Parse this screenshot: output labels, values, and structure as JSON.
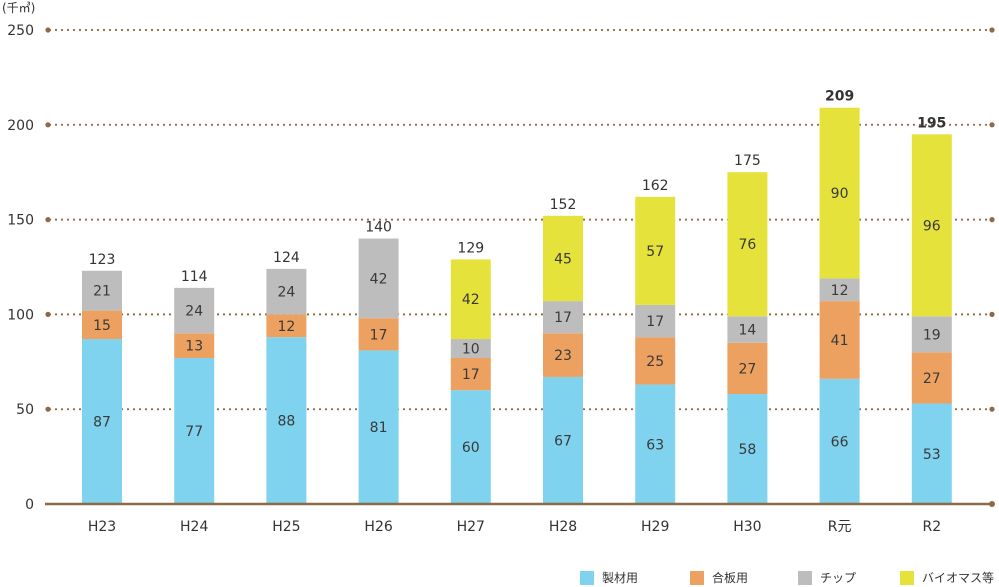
{
  "chart_data": {
    "type": "bar",
    "stacked": true,
    "unit_label": "(千㎥)",
    "categories": [
      "H23",
      "H24",
      "H25",
      "H26",
      "H27",
      "H28",
      "H29",
      "H30",
      "R元",
      "R2"
    ],
    "series": [
      {
        "name": "製材用",
        "color": "#7fd3ef",
        "values": [
          87,
          77,
          88,
          81,
          60,
          67,
          63,
          58,
          66,
          53
        ]
      },
      {
        "name": "合板用",
        "color": "#eda160",
        "values": [
          15,
          13,
          12,
          17,
          17,
          23,
          25,
          27,
          41,
          27
        ]
      },
      {
        "name": "チップ",
        "color": "#bdbdbd",
        "values": [
          21,
          24,
          24,
          42,
          10,
          17,
          17,
          14,
          12,
          19
        ]
      },
      {
        "name": "バイオマス等",
        "color": "#e6e23c",
        "values": [
          0,
          0,
          0,
          0,
          42,
          45,
          57,
          76,
          90,
          96
        ]
      }
    ],
    "totals": [
      123,
      114,
      124,
      140,
      129,
      152,
      162,
      175,
      209,
      195
    ],
    "totals_bold": [
      false,
      false,
      false,
      false,
      false,
      false,
      false,
      false,
      true,
      true
    ],
    "ylim": [
      0,
      250
    ],
    "yticks": [
      0,
      50,
      100,
      150,
      200,
      250
    ],
    "grid": true,
    "grid_color": "#8b6a45",
    "axis_color": "#8b6a45",
    "legend_position": "bottom-right"
  }
}
